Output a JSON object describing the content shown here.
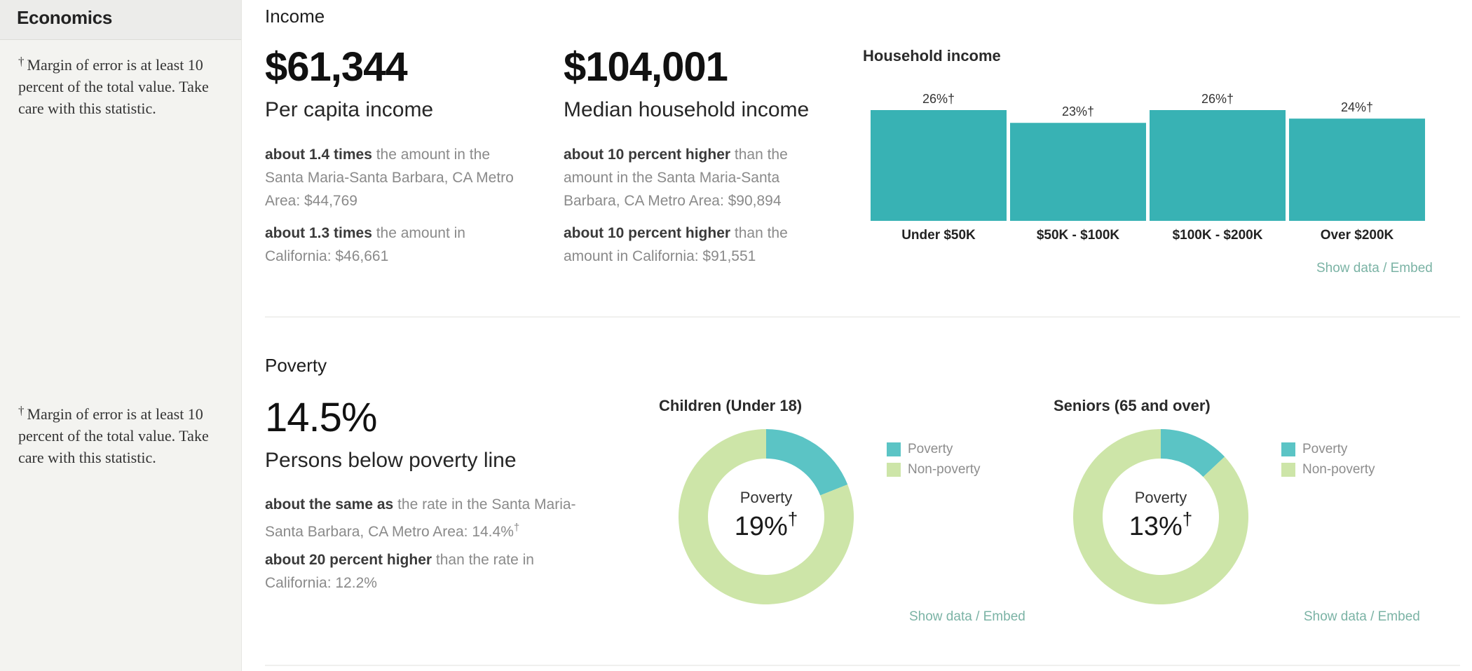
{
  "sidebar": {
    "title": "Economics",
    "notes": [
      {
        "dagger": "†",
        "text": "Margin of error is at least 10 percent of the total value. Take care with this statistic."
      },
      {
        "dagger": "†",
        "text": "Margin of error is at least 10 percent of the total value. Take care with this statistic."
      }
    ]
  },
  "income": {
    "title": "Income",
    "per_capita": {
      "value": "$61,344",
      "label": "Per capita income",
      "comparisons": [
        {
          "strong": "about 1.4 times",
          "rest": " the amount in the Santa Maria-Santa Barbara, CA Metro Area: $44,769"
        },
        {
          "strong": "about 1.3 times",
          "rest": " the amount in California: $46,661"
        }
      ]
    },
    "median_household": {
      "value": "$104,001",
      "label": "Median household income",
      "comparisons": [
        {
          "strong": "about 10 percent higher",
          "rest": " than the amount in the Santa Maria-Santa Barbara, CA Metro Area: $90,894"
        },
        {
          "strong": "about 10 percent higher",
          "rest": " than the amount in California: $91,551"
        }
      ]
    },
    "show_data_label": "Show data / Embed"
  },
  "poverty": {
    "title": "Poverty",
    "value": "14.5%",
    "label": "Persons below poverty line",
    "comparisons": [
      {
        "strong": "about the same as",
        "rest": " the rate in the Santa Maria-Santa Barbara, CA Metro Area: 14.4%",
        "dagger": "†"
      },
      {
        "strong": "about 20 percent higher",
        "rest": " than the rate in California: 12.2%",
        "dagger": ""
      }
    ],
    "legend": {
      "poverty": "Poverty",
      "non_poverty": "Non-poverty"
    },
    "center_label": "Poverty",
    "show_data_label": "Show data / Embed"
  },
  "colors": {
    "bar": "#38b2b4",
    "poverty": "#5bc4c5",
    "non_poverty": "#cde5a8",
    "link": "#7bb3a5"
  },
  "chart_data": [
    {
      "type": "bar",
      "title": "Household income",
      "categories": [
        "Under $50K",
        "$50K - $100K",
        "$100K - $200K",
        "Over $200K"
      ],
      "values": [
        26,
        23,
        26,
        24
      ],
      "value_labels": [
        "26%†",
        "23%†",
        "26%†",
        "24%†"
      ],
      "ylim": [
        0,
        26
      ]
    },
    {
      "type": "pie",
      "title": "Children (Under 18)",
      "categories": [
        "Poverty",
        "Non-poverty"
      ],
      "values": [
        19,
        81
      ],
      "center_value": "19%",
      "center_dagger": "†"
    },
    {
      "type": "pie",
      "title": "Seniors (65 and over)",
      "categories": [
        "Poverty",
        "Non-poverty"
      ],
      "values": [
        13,
        87
      ],
      "center_value": "13%",
      "center_dagger": "†"
    }
  ]
}
